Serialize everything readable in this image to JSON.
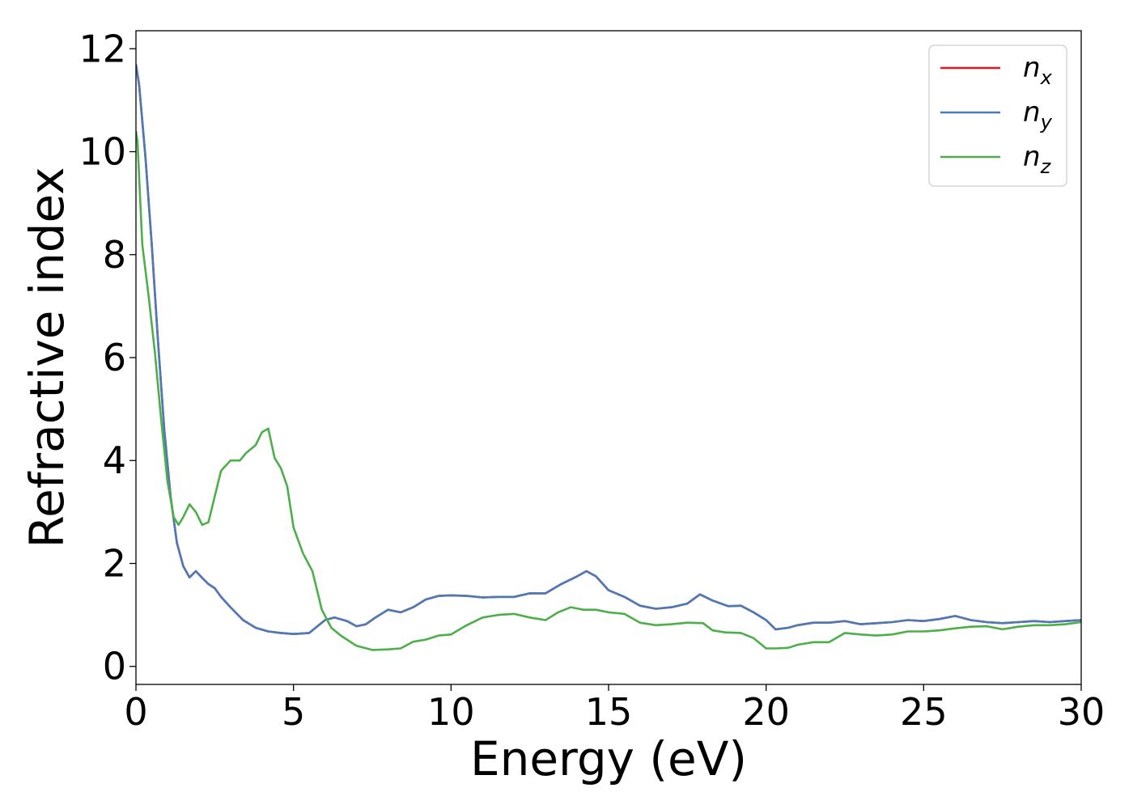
{
  "chart_data": {
    "type": "line",
    "xlabel": "Energy (eV)",
    "ylabel": "Refractive index",
    "xlim": [
      0,
      30
    ],
    "ylim": [
      -0.35,
      12.35
    ],
    "xticks": [
      0,
      5,
      10,
      15,
      20,
      25,
      30
    ],
    "yticks": [
      0,
      2,
      4,
      6,
      8,
      10,
      12
    ],
    "grid": false,
    "legend_position": "top-right",
    "series": [
      {
        "name": "n",
        "subscript": "x",
        "color": "#e41a1c",
        "x": [
          0,
          0.1,
          0.3,
          0.5,
          0.7,
          0.9,
          1.1,
          1.3,
          1.5,
          1.7,
          1.9,
          2.1,
          2.3,
          2.5,
          2.7,
          3.0,
          3.4,
          3.8,
          4.2,
          4.6,
          5.0,
          5.5,
          6.0,
          6.3,
          6.7,
          7.0,
          7.3,
          7.6,
          8.0,
          8.4,
          8.8,
          9.2,
          9.6,
          10.0,
          10.5,
          11.0,
          11.5,
          12.0,
          12.5,
          13.0,
          13.5,
          14.0,
          14.3,
          14.6,
          15.0,
          15.5,
          16.0,
          16.5,
          17.0,
          17.5,
          17.9,
          18.3,
          18.8,
          19.2,
          19.6,
          20.0,
          20.3,
          20.7,
          21.0,
          21.5,
          22.0,
          22.5,
          23.0,
          23.5,
          24.0,
          24.5,
          25.0,
          25.5,
          26.0,
          26.5,
          27.0,
          27.5,
          28.0,
          28.5,
          29.0,
          29.5,
          30.0
        ],
        "y": [
          11.7,
          11.3,
          9.9,
          8.2,
          6.3,
          4.6,
          3.3,
          2.4,
          1.95,
          1.73,
          1.85,
          1.72,
          1.6,
          1.52,
          1.35,
          1.15,
          0.9,
          0.75,
          0.68,
          0.65,
          0.63,
          0.65,
          0.9,
          0.95,
          0.88,
          0.78,
          0.82,
          0.95,
          1.1,
          1.05,
          1.15,
          1.3,
          1.37,
          1.38,
          1.37,
          1.34,
          1.35,
          1.35,
          1.42,
          1.42,
          1.6,
          1.75,
          1.85,
          1.75,
          1.48,
          1.35,
          1.18,
          1.12,
          1.15,
          1.22,
          1.4,
          1.28,
          1.17,
          1.18,
          1.05,
          0.9,
          0.72,
          0.75,
          0.8,
          0.85,
          0.85,
          0.88,
          0.82,
          0.84,
          0.86,
          0.9,
          0.88,
          0.92,
          0.98,
          0.9,
          0.86,
          0.84,
          0.86,
          0.88,
          0.86,
          0.88,
          0.9
        ]
      },
      {
        "name": "n",
        "subscript": "y",
        "color": "#4a7bb7",
        "x": [
          0,
          0.1,
          0.3,
          0.5,
          0.7,
          0.9,
          1.1,
          1.3,
          1.5,
          1.7,
          1.9,
          2.1,
          2.3,
          2.5,
          2.7,
          3.0,
          3.4,
          3.8,
          4.2,
          4.6,
          5.0,
          5.5,
          6.0,
          6.3,
          6.7,
          7.0,
          7.3,
          7.6,
          8.0,
          8.4,
          8.8,
          9.2,
          9.6,
          10.0,
          10.5,
          11.0,
          11.5,
          12.0,
          12.5,
          13.0,
          13.5,
          14.0,
          14.3,
          14.6,
          15.0,
          15.5,
          16.0,
          16.5,
          17.0,
          17.5,
          17.9,
          18.3,
          18.8,
          19.2,
          19.6,
          20.0,
          20.3,
          20.7,
          21.0,
          21.5,
          22.0,
          22.5,
          23.0,
          23.5,
          24.0,
          24.5,
          25.0,
          25.5,
          26.0,
          26.5,
          27.0,
          27.5,
          28.0,
          28.5,
          29.0,
          29.5,
          30.0
        ],
        "y": [
          11.7,
          11.3,
          9.9,
          8.2,
          6.3,
          4.6,
          3.3,
          2.4,
          1.95,
          1.73,
          1.85,
          1.72,
          1.6,
          1.52,
          1.35,
          1.15,
          0.9,
          0.75,
          0.68,
          0.65,
          0.63,
          0.65,
          0.9,
          0.95,
          0.88,
          0.78,
          0.82,
          0.95,
          1.1,
          1.05,
          1.15,
          1.3,
          1.37,
          1.38,
          1.37,
          1.34,
          1.35,
          1.35,
          1.42,
          1.42,
          1.6,
          1.75,
          1.85,
          1.75,
          1.48,
          1.35,
          1.18,
          1.12,
          1.15,
          1.22,
          1.4,
          1.28,
          1.17,
          1.18,
          1.05,
          0.9,
          0.72,
          0.75,
          0.8,
          0.85,
          0.85,
          0.88,
          0.82,
          0.84,
          0.86,
          0.9,
          0.88,
          0.92,
          0.98,
          0.9,
          0.86,
          0.84,
          0.86,
          0.88,
          0.86,
          0.88,
          0.9
        ]
      },
      {
        "name": "n",
        "subscript": "z",
        "color": "#4daf4a",
        "x": [
          0,
          0.05,
          0.2,
          0.4,
          0.6,
          0.8,
          1.0,
          1.2,
          1.35,
          1.5,
          1.7,
          1.9,
          2.1,
          2.3,
          2.5,
          2.7,
          3.0,
          3.3,
          3.5,
          3.8,
          4.0,
          4.2,
          4.4,
          4.6,
          4.8,
          5.0,
          5.3,
          5.6,
          5.9,
          6.2,
          6.5,
          7.0,
          7.5,
          8.0,
          8.4,
          8.8,
          9.2,
          9.6,
          10.0,
          10.5,
          11.0,
          11.5,
          12.0,
          12.5,
          13.0,
          13.4,
          13.8,
          14.2,
          14.6,
          15.0,
          15.5,
          16.0,
          16.5,
          17.0,
          17.5,
          18.0,
          18.3,
          18.7,
          19.2,
          19.6,
          20.0,
          20.3,
          20.7,
          21.0,
          21.5,
          22.0,
          22.5,
          23.0,
          23.5,
          24.0,
          24.5,
          25.0,
          25.5,
          26.0,
          26.5,
          27.0,
          27.5,
          28.0,
          28.5,
          29.0,
          29.5,
          30.0
        ],
        "y": [
          10.4,
          10.2,
          8.2,
          7.2,
          6.1,
          4.8,
          3.6,
          2.9,
          2.75,
          2.9,
          3.15,
          3.0,
          2.75,
          2.8,
          3.3,
          3.8,
          4.0,
          4.0,
          4.15,
          4.3,
          4.55,
          4.62,
          4.05,
          3.85,
          3.5,
          2.7,
          2.2,
          1.85,
          1.1,
          0.75,
          0.6,
          0.4,
          0.32,
          0.33,
          0.35,
          0.48,
          0.52,
          0.6,
          0.62,
          0.8,
          0.95,
          1.0,
          1.02,
          0.95,
          0.9,
          1.05,
          1.15,
          1.1,
          1.1,
          1.05,
          1.02,
          0.85,
          0.8,
          0.82,
          0.85,
          0.84,
          0.7,
          0.66,
          0.65,
          0.55,
          0.35,
          0.35,
          0.36,
          0.42,
          0.47,
          0.47,
          0.65,
          0.62,
          0.6,
          0.62,
          0.68,
          0.68,
          0.7,
          0.74,
          0.77,
          0.78,
          0.72,
          0.77,
          0.8,
          0.8,
          0.82,
          0.86
        ]
      }
    ]
  }
}
